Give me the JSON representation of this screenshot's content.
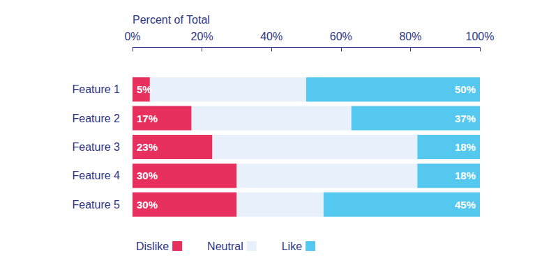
{
  "chart_data": {
    "type": "bar",
    "orientation": "horizontal",
    "stacked": true,
    "x_label": "Percent of Total",
    "categories": [
      "Feature 1",
      "Feature 2",
      "Feature 3",
      "Feature 4",
      "Feature 5"
    ],
    "series": [
      {
        "name": "Dislike",
        "color": "#e8305f",
        "values": [
          5,
          17,
          23,
          30,
          30
        ],
        "value_labels": [
          "5%",
          "17%",
          "23%",
          "30%",
          "30%"
        ],
        "data_labels": true
      },
      {
        "name": "Neutral",
        "color": "#e8f1fb",
        "values": [
          45,
          46,
          59,
          52,
          25
        ],
        "data_labels": false
      },
      {
        "name": "Like",
        "color": "#55c8ef",
        "values": [
          50,
          37,
          18,
          18,
          45
        ],
        "value_labels": [
          "50%",
          "37%",
          "18%",
          "18%",
          "45%"
        ],
        "data_labels": true
      }
    ],
    "xlim": [
      0,
      100
    ],
    "xticks": [
      {
        "value": 0,
        "label": "0%"
      },
      {
        "value": 20,
        "label": "20%"
      },
      {
        "value": 40,
        "label": "40%"
      },
      {
        "value": 60,
        "label": "60%"
      },
      {
        "value": 80,
        "label": "80%"
      },
      {
        "value": 100,
        "label": "100%"
      }
    ],
    "grid": false,
    "legend": "bottom"
  }
}
